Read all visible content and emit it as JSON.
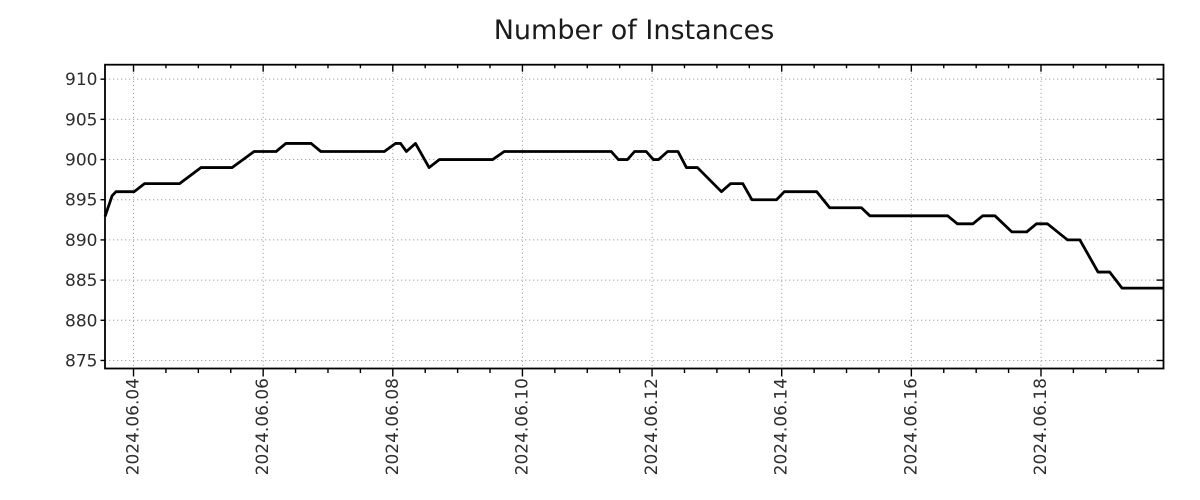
{
  "chart_data": {
    "type": "line",
    "title": "Number of Instances",
    "xlabel": "",
    "ylabel": "",
    "legend": "none",
    "grid": "dotted",
    "x_unit": "date (day of June 2024, fractional)",
    "xlim_days": [
      3.56,
      19.89
    ],
    "ylim": [
      874.0,
      911.8
    ],
    "x_tick_days": [
      4,
      6,
      8,
      10,
      12,
      14,
      16,
      18
    ],
    "x_tick_labels": [
      "2024.06.04",
      "2024.06.06",
      "2024.06.08",
      "2024.06.10",
      "2024.06.12",
      "2024.06.14",
      "2024.06.16",
      "2024.06.18"
    ],
    "x_minor_step_days": 0.5,
    "y_ticks": [
      875,
      880,
      885,
      890,
      895,
      900,
      905,
      910
    ],
    "colors": {
      "line": "#000000",
      "grid": "#a9a9a9",
      "spine": "#000000",
      "background": "#ffffff",
      "title_text": "#1b1b1b",
      "tick_text": "#2d2d2d"
    },
    "series": [
      {
        "name": "instances",
        "points": [
          [
            3.56,
            892.9
          ],
          [
            3.67,
            895.5
          ],
          [
            3.73,
            896
          ],
          [
            4.01,
            896
          ],
          [
            4.17,
            897
          ],
          [
            4.71,
            897
          ],
          [
            5.04,
            899
          ],
          [
            5.52,
            899
          ],
          [
            5.86,
            901
          ],
          [
            6.2,
            901
          ],
          [
            6.35,
            902
          ],
          [
            6.74,
            902
          ],
          [
            6.89,
            901
          ],
          [
            7.87,
            901
          ],
          [
            8.04,
            902
          ],
          [
            8.12,
            902
          ],
          [
            8.21,
            901
          ],
          [
            8.35,
            902
          ],
          [
            8.56,
            899
          ],
          [
            8.72,
            900
          ],
          [
            9.54,
            900
          ],
          [
            9.72,
            901
          ],
          [
            11.37,
            901
          ],
          [
            11.48,
            900
          ],
          [
            11.62,
            900
          ],
          [
            11.73,
            901
          ],
          [
            11.91,
            901
          ],
          [
            12.02,
            900
          ],
          [
            12.1,
            900
          ],
          [
            12.24,
            901
          ],
          [
            12.4,
            901
          ],
          [
            12.53,
            899
          ],
          [
            12.7,
            899
          ],
          [
            13.07,
            896
          ],
          [
            13.21,
            897
          ],
          [
            13.4,
            897
          ],
          [
            13.54,
            895
          ],
          [
            13.92,
            895
          ],
          [
            14.04,
            896
          ],
          [
            14.54,
            896
          ],
          [
            14.74,
            894
          ],
          [
            15.23,
            894
          ],
          [
            15.36,
            893
          ],
          [
            16.56,
            893
          ],
          [
            16.71,
            892
          ],
          [
            16.95,
            892
          ],
          [
            17.1,
            893
          ],
          [
            17.29,
            893
          ],
          [
            17.55,
            891
          ],
          [
            17.78,
            891
          ],
          [
            17.93,
            892
          ],
          [
            18.1,
            892
          ],
          [
            18.41,
            890
          ],
          [
            18.6,
            890
          ],
          [
            18.88,
            886
          ],
          [
            19.06,
            886
          ],
          [
            19.25,
            884
          ],
          [
            19.89,
            884
          ]
        ]
      }
    ]
  }
}
